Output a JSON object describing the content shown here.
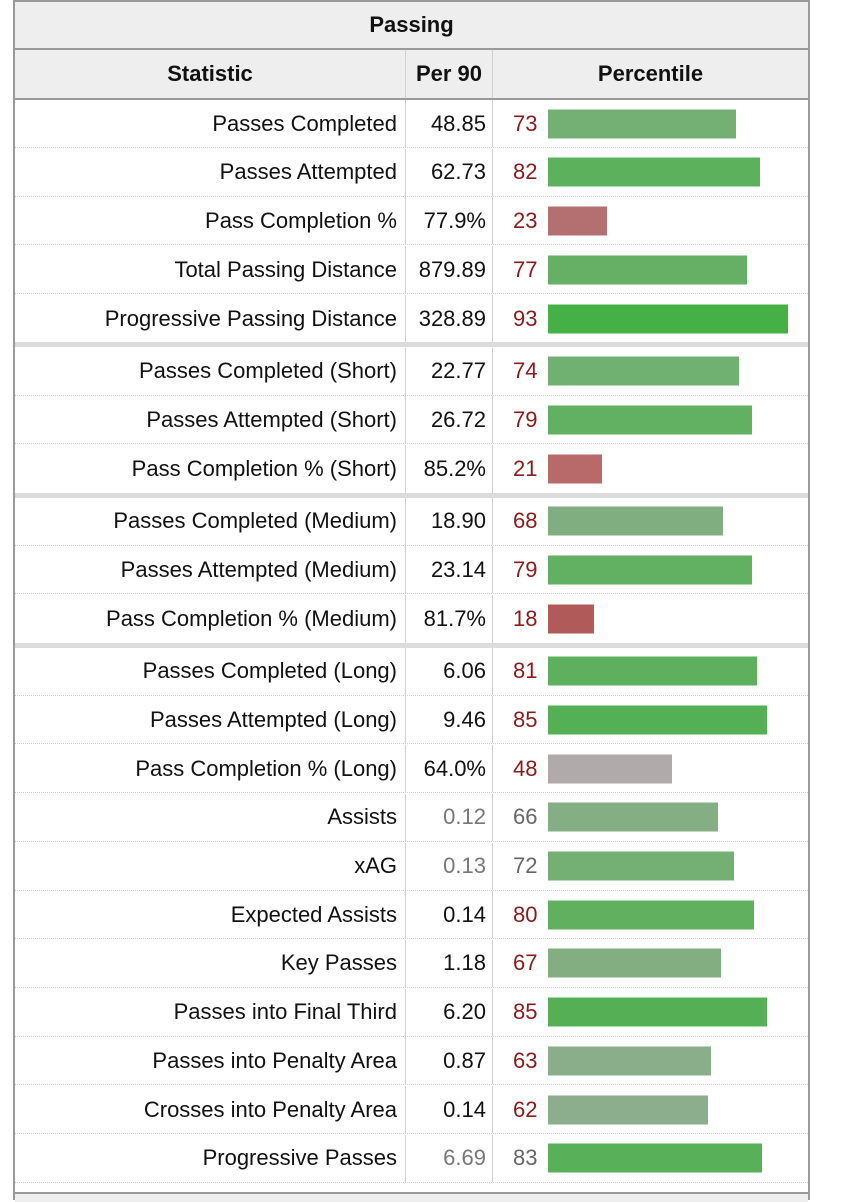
{
  "table": {
    "caption": "Passing",
    "headers": {
      "statistic": "Statistic",
      "per90": "Per 90",
      "percentile": "Percentile"
    },
    "rows": [
      {
        "stat": "Passes Completed",
        "per90": "48.85",
        "pct": 73,
        "color": "#74b074",
        "gap": false,
        "dim": false
      },
      {
        "stat": "Passes Attempted",
        "per90": "62.73",
        "pct": 82,
        "color": "#5cb25c",
        "gap": false,
        "dim": false
      },
      {
        "stat": "Pass Completion %",
        "per90": "77.9%",
        "pct": 23,
        "color": "#b47070",
        "gap": false,
        "dim": false
      },
      {
        "stat": "Total Passing Distance",
        "per90": "879.89",
        "pct": 77,
        "color": "#66b066",
        "gap": false,
        "dim": false
      },
      {
        "stat": "Progressive Passing Distance",
        "per90": "328.89",
        "pct": 93,
        "color": "#45b045",
        "gap": true,
        "dim": false
      },
      {
        "stat": "Passes Completed (Short)",
        "per90": "22.77",
        "pct": 74,
        "color": "#70b070",
        "gap": false,
        "dim": false
      },
      {
        "stat": "Passes Attempted (Short)",
        "per90": "26.72",
        "pct": 79,
        "color": "#62b062",
        "gap": false,
        "dim": false
      },
      {
        "stat": "Pass Completion % (Short)",
        "per90": "85.2%",
        "pct": 21,
        "color": "#b86a6a",
        "gap": true,
        "dim": false
      },
      {
        "stat": "Passes Completed (Medium)",
        "per90": "18.90",
        "pct": 68,
        "color": "#80ae80",
        "gap": false,
        "dim": false
      },
      {
        "stat": "Passes Attempted (Medium)",
        "per90": "23.14",
        "pct": 79,
        "color": "#62b062",
        "gap": false,
        "dim": false
      },
      {
        "stat": "Pass Completion % (Medium)",
        "per90": "81.7%",
        "pct": 18,
        "color": "#b05a5a",
        "gap": true,
        "dim": false
      },
      {
        "stat": "Passes Completed (Long)",
        "per90": "6.06",
        "pct": 81,
        "color": "#5eb05e",
        "gap": false,
        "dim": false
      },
      {
        "stat": "Passes Attempted (Long)",
        "per90": "9.46",
        "pct": 85,
        "color": "#55b055",
        "gap": false,
        "dim": false
      },
      {
        "stat": "Pass Completion % (Long)",
        "per90": "64.0%",
        "pct": 48,
        "color": "#b0aaaa",
        "gap": false,
        "dim": false
      },
      {
        "stat": "Assists",
        "per90": "0.12",
        "pct": 66,
        "color": "#84ae84",
        "gap": false,
        "dim": true
      },
      {
        "stat": "xAG",
        "per90": "0.13",
        "pct": 72,
        "color": "#74b074",
        "gap": false,
        "dim": true
      },
      {
        "stat": "Expected Assists",
        "per90": "0.14",
        "pct": 80,
        "color": "#60b060",
        "gap": false,
        "dim": false
      },
      {
        "stat": "Key Passes",
        "per90": "1.18",
        "pct": 67,
        "color": "#82ae82",
        "gap": false,
        "dim": false
      },
      {
        "stat": "Passes into Final Third",
        "per90": "6.20",
        "pct": 85,
        "color": "#55b055",
        "gap": false,
        "dim": false
      },
      {
        "stat": "Passes into Penalty Area",
        "per90": "0.87",
        "pct": 63,
        "color": "#8aae8a",
        "gap": false,
        "dim": false
      },
      {
        "stat": "Crosses into Penalty Area",
        "per90": "0.14",
        "pct": 62,
        "color": "#8cae8c",
        "gap": false,
        "dim": false
      },
      {
        "stat": "Progressive Passes",
        "per90": "6.69",
        "pct": 83,
        "color": "#58b058",
        "gap": false,
        "dim": true
      }
    ]
  }
}
